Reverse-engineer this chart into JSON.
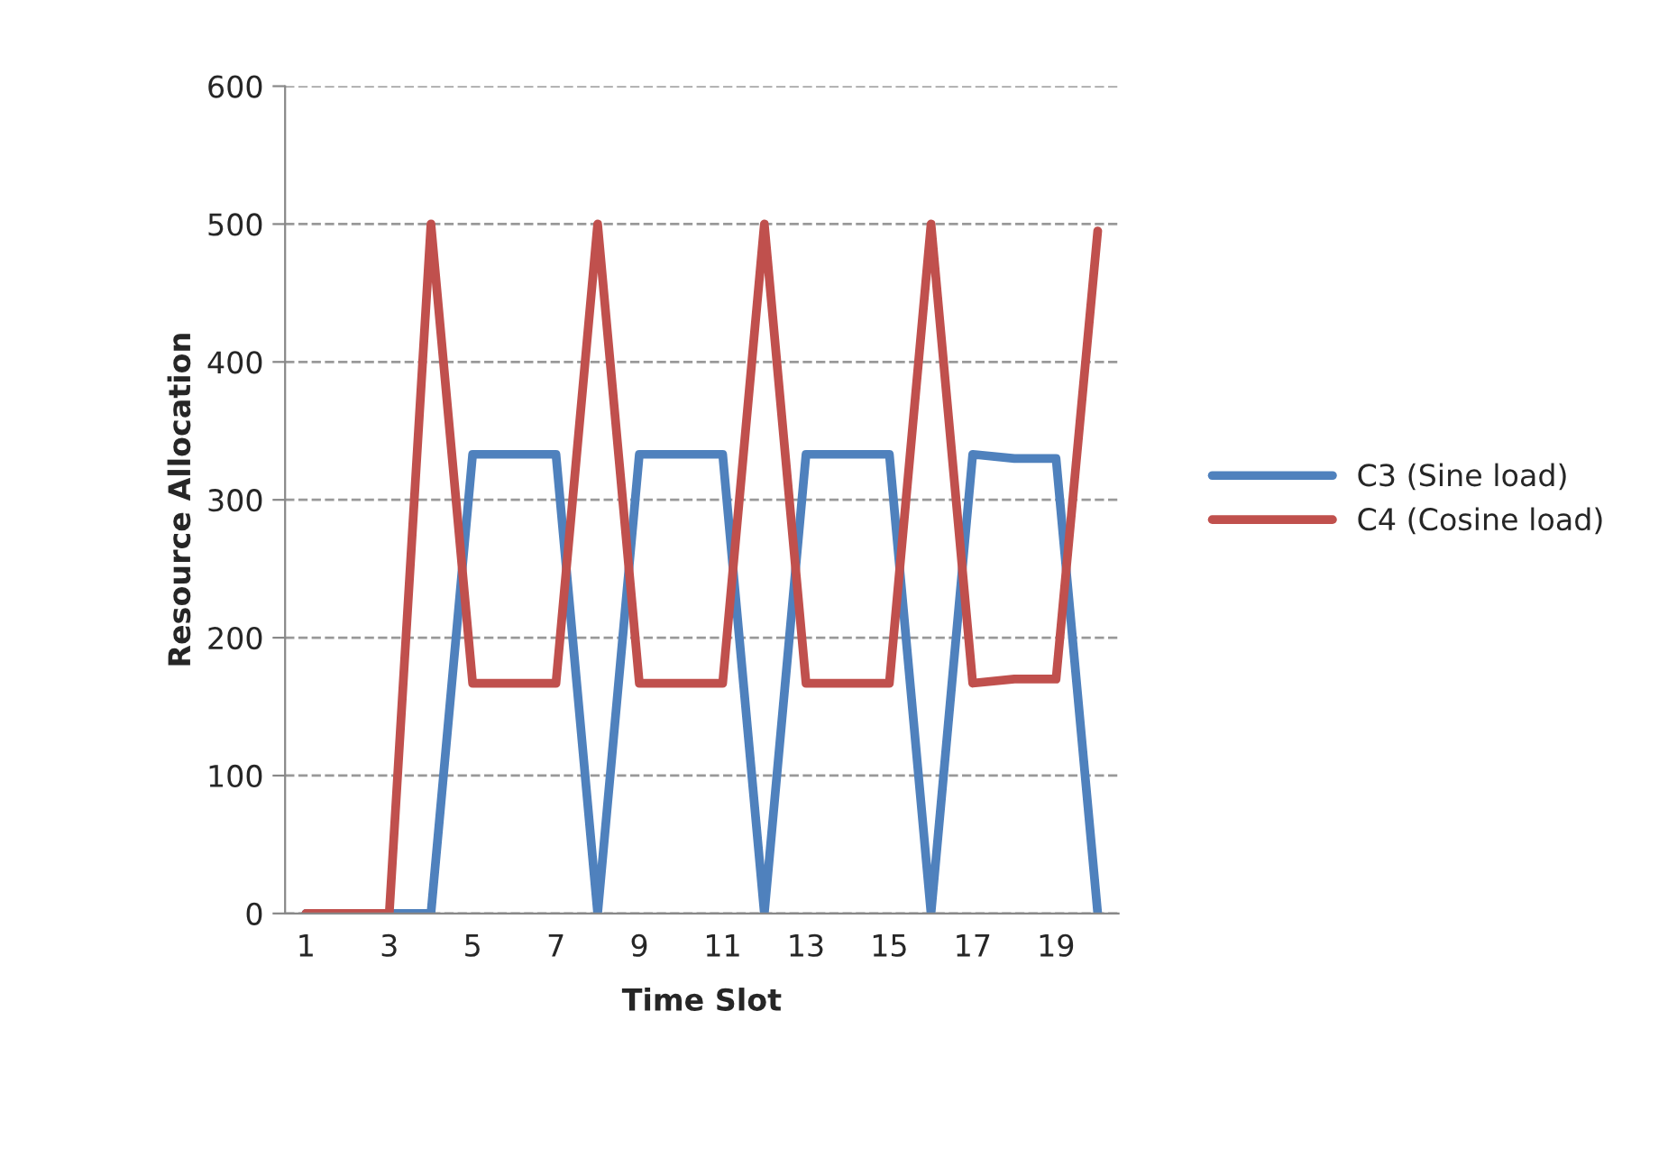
{
  "chart_data": {
    "type": "line",
    "xlabel": "Time Slot",
    "ylabel": "Resource Allocation",
    "categories": [
      "1",
      null,
      "3",
      null,
      "5",
      null,
      "7",
      null,
      "9",
      null,
      "11",
      null,
      "13",
      null,
      "15",
      null,
      "17",
      null,
      "19",
      null
    ],
    "series": [
      {
        "name": "C3 (Sine load)",
        "color": "#4f81bd",
        "values": [
          0,
          0,
          0,
          0,
          333,
          333,
          333,
          0,
          333,
          333,
          333,
          0,
          333,
          333,
          333,
          0,
          333,
          330,
          330,
          0
        ]
      },
      {
        "name": "C4 (Cosine load)",
        "color": "#c0504d",
        "values": [
          0,
          0,
          0,
          500,
          167,
          167,
          167,
          500,
          167,
          167,
          167,
          500,
          167,
          167,
          167,
          500,
          167,
          170,
          170,
          495
        ]
      }
    ],
    "ylim": [
      0,
      600
    ],
    "yticks": [
      0,
      100,
      200,
      300,
      400,
      500,
      600
    ],
    "grid": "y",
    "legend": "right",
    "marker": "none",
    "line_style": "solid"
  }
}
